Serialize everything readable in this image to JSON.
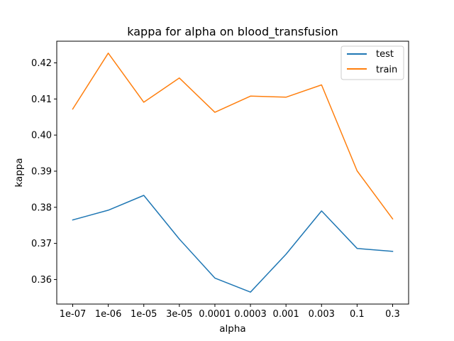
{
  "chart_data": {
    "type": "line",
    "title": "kappa for alpha on  blood_transfusion",
    "xlabel": "alpha",
    "ylabel": "kappa",
    "categories": [
      "1e-07",
      "1e-06",
      "1e-05",
      "3e-05",
      "0.0001",
      "0.0003",
      "0.001",
      "0.003",
      "0.1",
      "0.3"
    ],
    "series": [
      {
        "name": "test",
        "color": "#1f77b4",
        "values": [
          0.3765,
          0.3792,
          0.3833,
          0.3712,
          0.3604,
          0.3565,
          0.367,
          0.379,
          0.3686,
          0.3678
        ]
      },
      {
        "name": "train",
        "color": "#ff7f0e",
        "values": [
          0.4072,
          0.4227,
          0.4091,
          0.4158,
          0.4063,
          0.4108,
          0.4105,
          0.4139,
          0.3901,
          0.3768
        ]
      }
    ],
    "ylim": [
      0.3532,
      0.426
    ],
    "yticks": [
      "0.36",
      "0.37",
      "0.38",
      "0.39",
      "0.40",
      "0.41",
      "0.42"
    ],
    "grid": false,
    "legend_position": "top-right"
  }
}
